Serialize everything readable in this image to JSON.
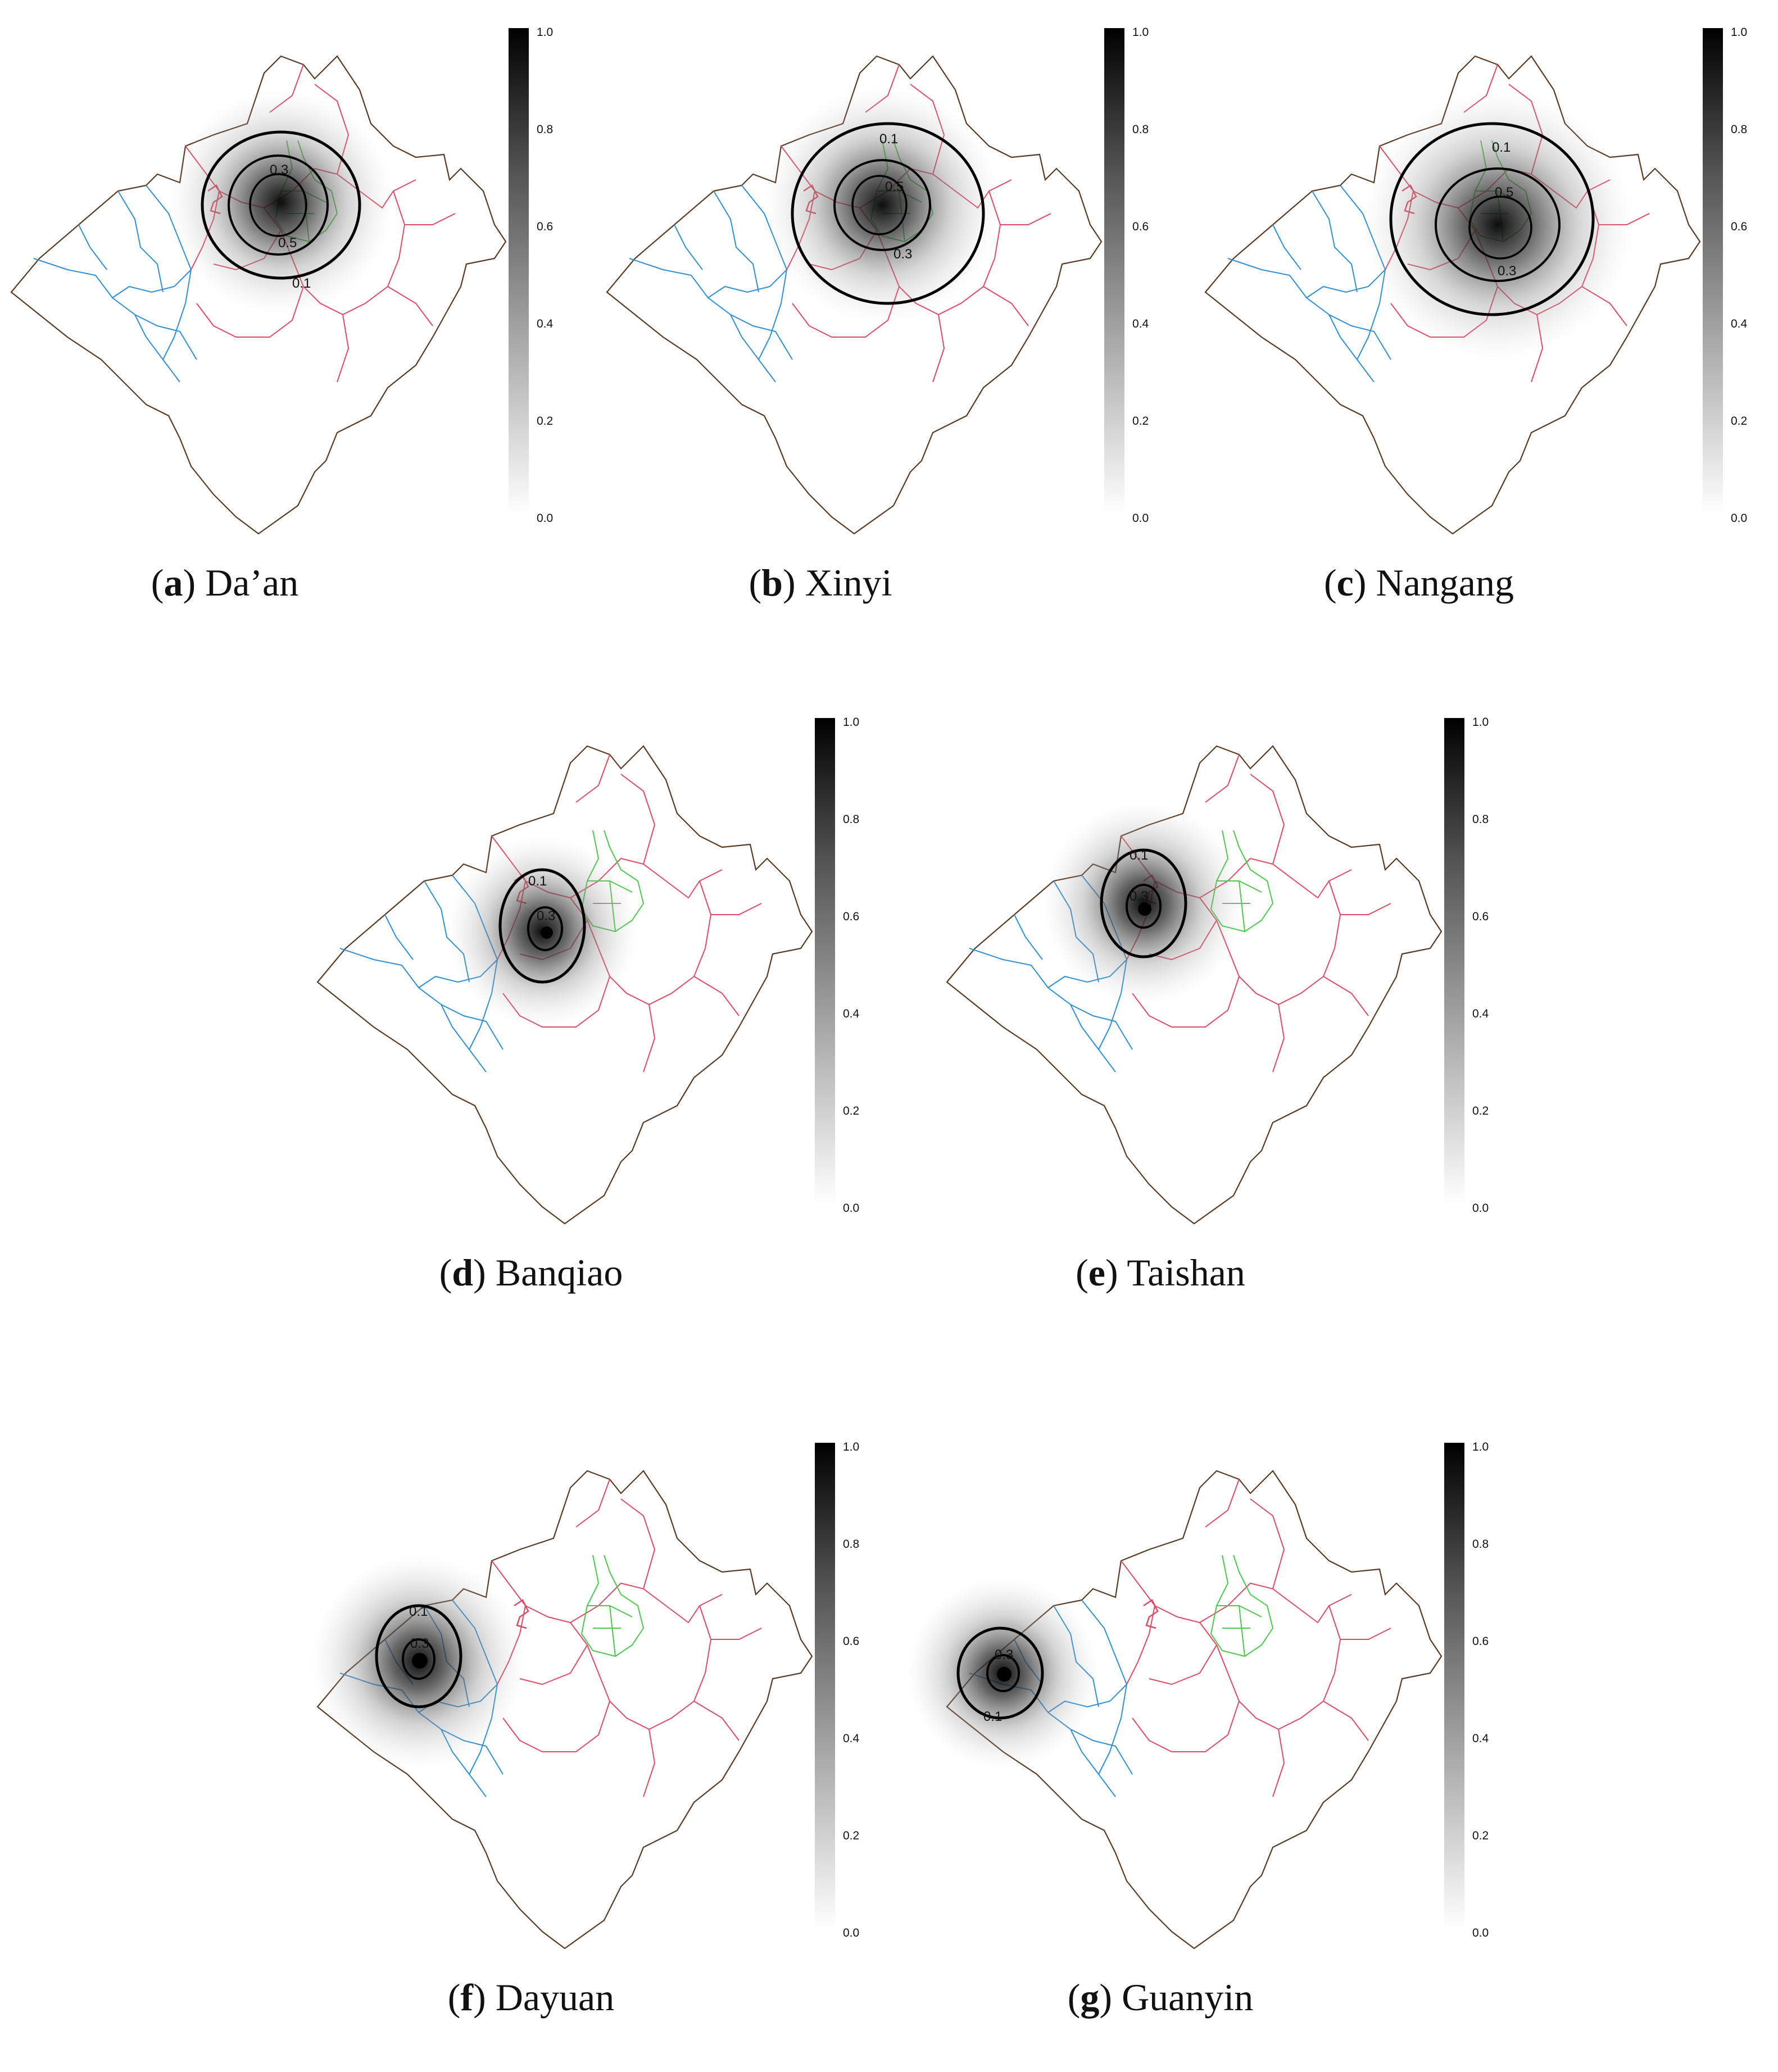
{
  "figure": {
    "colorbar": {
      "ticks": [
        "1.0",
        "0.8",
        "0.6",
        "0.4",
        "0.2",
        "0.0"
      ],
      "range": [
        0.0,
        1.0
      ],
      "gradient": {
        "low": "#ffffff",
        "high": "#000000"
      }
    },
    "colors": {
      "outline": "#5a3a22",
      "taoyuan": "#2f8fd8",
      "new_taipei": "#e04a64",
      "taipei": "#4cc94c",
      "contour": "#000000"
    },
    "panels": [
      {
        "id": "a",
        "letter": "a",
        "name": "Da’an",
        "labels": [
          "0.3",
          "0.5",
          "0.1"
        ]
      },
      {
        "id": "b",
        "letter": "b",
        "name": "Xinyi",
        "labels": [
          "0.1",
          "0.5",
          "0.3"
        ]
      },
      {
        "id": "c",
        "letter": "c",
        "name": "Nangang",
        "labels": [
          "0.1",
          "0.5",
          "0.3"
        ]
      },
      {
        "id": "d",
        "letter": "d",
        "name": "Banqiao",
        "labels": [
          "0.1",
          "0.3"
        ]
      },
      {
        "id": "e",
        "letter": "e",
        "name": "Taishan",
        "labels": [
          "0.1",
          "0.3"
        ]
      },
      {
        "id": "f",
        "letter": "f",
        "name": "Dayuan",
        "labels": [
          "0.1",
          "0.3"
        ]
      },
      {
        "id": "g",
        "letter": "g",
        "name": "Guanyin",
        "labels": [
          "0.3",
          "0.1"
        ]
      }
    ]
  }
}
